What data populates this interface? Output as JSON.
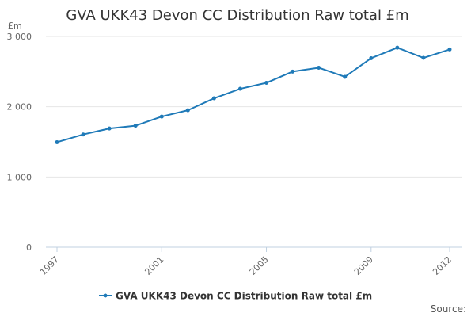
{
  "chart_data": {
    "type": "line",
    "title": "GVA UKK43 Devon CC Distribution Raw total £m",
    "unit_label": "£m",
    "x": [
      1997,
      1998,
      1999,
      2000,
      2001,
      2002,
      2003,
      2004,
      2005,
      2006,
      2007,
      2008,
      2009,
      2010,
      2011,
      2012
    ],
    "x_tick_labels": [
      "1997",
      "2001",
      "2005",
      "2009",
      "2012"
    ],
    "x_ticks": [
      1997,
      2001,
      2005,
      2009,
      2012
    ],
    "y_ticks": [
      0,
      1000,
      2000,
      3000
    ],
    "y_tick_labels": [
      "0",
      "1 000",
      "2 000",
      "3 000"
    ],
    "ylim": [
      0,
      3000
    ],
    "xlim": [
      1997,
      2012
    ],
    "grid": true,
    "legend_position": "bottom",
    "series": [
      {
        "name": "GVA UKK43 Devon CC Distribution Raw total £m",
        "color": "#1f7ab8",
        "values": [
          1495,
          1605,
          1690,
          1730,
          1860,
          1950,
          2120,
          2255,
          2340,
          2500,
          2555,
          2425,
          2690,
          2840,
          2695,
          2815
        ]
      }
    ],
    "source_label": "Source:"
  }
}
